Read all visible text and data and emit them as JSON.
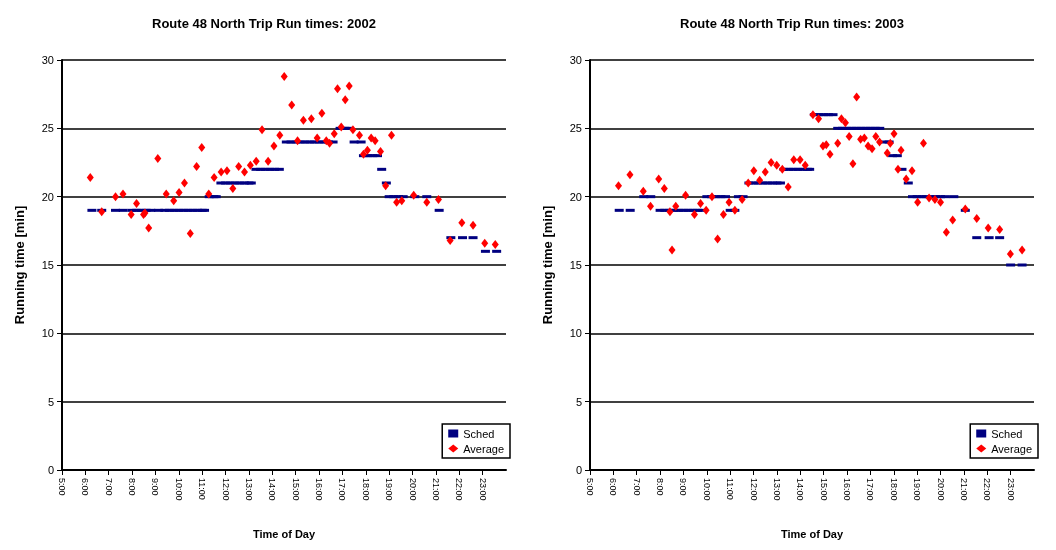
{
  "chart_data": [
    {
      "type": "scatter",
      "title": "Route 48 North Trip Run times: 2002",
      "xlabel": "Time of Day",
      "ylabel": "Running time [min]",
      "xlim": [
        5,
        24
      ],
      "xticks": [
        {
          "value": 5,
          "label": "5:00"
        },
        {
          "value": 6,
          "label": "6:00"
        },
        {
          "value": 7,
          "label": "7:00"
        },
        {
          "value": 8,
          "label": "8:00"
        },
        {
          "value": 9,
          "label": "9:00"
        },
        {
          "value": 10,
          "label": "10:00"
        },
        {
          "value": 11,
          "label": "11:00"
        },
        {
          "value": 12,
          "label": "12:00"
        },
        {
          "value": 13,
          "label": "13:00"
        },
        {
          "value": 14,
          "label": "14:00"
        },
        {
          "value": 15,
          "label": "15:00"
        },
        {
          "value": 16,
          "label": "16:00"
        },
        {
          "value": 17,
          "label": "17:00"
        },
        {
          "value": 18,
          "label": "18:00"
        },
        {
          "value": 19,
          "label": "19:00"
        },
        {
          "value": 20,
          "label": "20:00"
        },
        {
          "value": 21,
          "label": "21:00"
        },
        {
          "value": 22,
          "label": "22:00"
        },
        {
          "value": 23,
          "label": "23:00"
        }
      ],
      "ylim": [
        0,
        30
      ],
      "yticks": [
        0,
        5,
        10,
        15,
        20,
        25,
        30
      ],
      "grid": "y",
      "legend": "bottom right",
      "series": [
        {
          "name": "Sched",
          "color": "#000080",
          "marker": "square",
          "x": [
            6.28,
            6.7,
            7.29,
            7.62,
            8.0,
            8.2,
            8.4,
            8.6,
            8.8,
            9.13,
            9.4,
            9.6,
            9.8,
            10.0,
            10.2,
            10.4,
            10.6,
            10.8,
            11.0,
            11.1,
            11.3,
            11.5,
            11.6,
            11.8,
            12.0,
            12.2,
            12.4,
            12.6,
            12.8,
            13.0,
            13.1,
            13.3,
            13.5,
            13.7,
            13.9,
            14.1,
            14.3,
            14.6,
            14.8,
            15.0,
            15.2,
            15.4,
            15.6,
            15.8,
            16.0,
            16.2,
            16.4,
            16.6,
            16.9,
            17.1,
            17.3,
            17.5,
            17.8,
            17.9,
            18.1,
            18.3,
            18.5,
            18.68,
            18.88,
            19.0,
            19.2,
            19.4,
            19.6,
            20.1,
            20.61,
            21.14,
            21.64,
            22.14,
            22.59,
            23.12,
            23.6
          ],
          "values": [
            19,
            19,
            19,
            19,
            19,
            19,
            19,
            19,
            19,
            19,
            19,
            19,
            19,
            19,
            19,
            19,
            19,
            19,
            19,
            19,
            20,
            20,
            20,
            21,
            21,
            21,
            21,
            21,
            21,
            21,
            21,
            22,
            22,
            22,
            22,
            22,
            22,
            24,
            24,
            24,
            24,
            24,
            24,
            24,
            24,
            24,
            24,
            24,
            25,
            25,
            25,
            24,
            24,
            23,
            23,
            23,
            23,
            22,
            21,
            20,
            20,
            20,
            20,
            20,
            20,
            19,
            17,
            17,
            17,
            16,
            16
          ]
        },
        {
          "name": "Average",
          "color": "#ff0000",
          "marker": "diamond",
          "x": [
            6.21,
            6.7,
            7.29,
            7.61,
            7.96,
            8.19,
            8.49,
            8.55,
            8.71,
            9.1,
            9.46,
            9.78,
            10.01,
            10.24,
            10.49,
            10.76,
            10.98,
            11.28,
            11.51,
            11.81,
            12.06,
            12.31,
            12.56,
            12.81,
            13.06,
            13.31,
            13.56,
            13.82,
            14.07,
            14.32,
            14.51,
            14.83,
            15.08,
            15.33,
            15.67,
            15.92,
            16.12,
            16.31,
            16.45,
            16.65,
            16.79,
            16.95,
            17.12,
            17.29,
            17.45,
            17.73,
            17.9,
            18.07,
            18.23,
            18.4,
            18.63,
            18.85,
            19.1,
            19.32,
            19.54,
            20.05,
            20.61,
            21.11,
            21.61,
            22.11,
            22.59,
            23.09,
            23.54
          ],
          "values": [
            21.4,
            18.9,
            20.0,
            20.2,
            18.7,
            19.5,
            18.7,
            18.8,
            17.7,
            22.8,
            20.2,
            19.7,
            20.3,
            21.0,
            17.3,
            22.2,
            23.6,
            20.2,
            21.4,
            21.8,
            21.9,
            20.6,
            22.2,
            21.8,
            22.3,
            22.6,
            24.9,
            22.6,
            23.7,
            24.5,
            28.8,
            26.7,
            24.1,
            25.6,
            25.7,
            24.3,
            26.1,
            24.1,
            23.9,
            24.6,
            27.9,
            25.1,
            27.1,
            28.1,
            24.9,
            24.5,
            23.1,
            23.4,
            24.3,
            24.1,
            23.3,
            20.8,
            24.5,
            19.6,
            19.7,
            20.1,
            19.6,
            19.8,
            16.8,
            18.1,
            17.9,
            16.6,
            16.5
          ]
        }
      ]
    },
    {
      "type": "scatter",
      "title": "Route 48 North Trip Run times: 2003",
      "xlabel": "Time of Day",
      "ylabel": "Running time [min]",
      "xlim": [
        5,
        24
      ],
      "xticks": [
        {
          "value": 5,
          "label": "5:00"
        },
        {
          "value": 6,
          "label": "6:00"
        },
        {
          "value": 7,
          "label": "7:00"
        },
        {
          "value": 8,
          "label": "8:00"
        },
        {
          "value": 9,
          "label": "9:00"
        },
        {
          "value": 10,
          "label": "10:00"
        },
        {
          "value": 11,
          "label": "11:00"
        },
        {
          "value": 12,
          "label": "12:00"
        },
        {
          "value": 13,
          "label": "13:00"
        },
        {
          "value": 14,
          "label": "14:00"
        },
        {
          "value": 15,
          "label": "15:00"
        },
        {
          "value": 16,
          "label": "16:00"
        },
        {
          "value": 17,
          "label": "17:00"
        },
        {
          "value": 18,
          "label": "18:00"
        },
        {
          "value": 19,
          "label": "19:00"
        },
        {
          "value": 20,
          "label": "20:00"
        },
        {
          "value": 21,
          "label": "21:00"
        },
        {
          "value": 22,
          "label": "22:00"
        },
        {
          "value": 23,
          "label": "23:00"
        }
      ],
      "ylim": [
        0,
        30
      ],
      "yticks": [
        0,
        5,
        10,
        15,
        20,
        25,
        30
      ],
      "grid": "y",
      "legend": "bottom right",
      "series": [
        {
          "name": "Sched",
          "color": "#000080",
          "marker": "square",
          "x": [
            6.25,
            6.72,
            7.3,
            7.6,
            8.0,
            8.2,
            8.4,
            8.6,
            8.8,
            9.0,
            9.2,
            9.4,
            9.6,
            9.8,
            10.0,
            10.2,
            10.4,
            10.6,
            10.8,
            11.0,
            11.2,
            11.35,
            11.55,
            11.8,
            12.0,
            12.2,
            12.4,
            12.6,
            12.8,
            13.0,
            13.15,
            13.3,
            13.5,
            13.7,
            13.9,
            14.1,
            14.3,
            14.4,
            14.6,
            14.8,
            15.0,
            15.2,
            15.4,
            15.6,
            15.8,
            16.0,
            16.2,
            16.4,
            16.6,
            16.8,
            17.0,
            17.2,
            17.4,
            17.6,
            17.8,
            17.95,
            18.15,
            18.35,
            18.62,
            18.8,
            19.0,
            19.2,
            19.4,
            19.6,
            19.8,
            20.0,
            20.2,
            20.57,
            21.06,
            21.55,
            22.08,
            22.53,
            23.0,
            23.49
          ],
          "values": [
            19,
            19,
            20,
            20,
            19,
            19,
            19,
            19,
            19,
            19,
            19,
            19,
            19,
            19,
            20,
            20,
            20,
            20,
            20,
            19,
            19,
            20,
            20,
            21,
            21,
            21,
            21,
            21,
            21,
            21,
            21,
            22,
            22,
            22,
            22,
            22,
            22,
            22,
            26,
            26,
            26,
            26,
            26,
            25,
            25,
            25,
            25,
            25,
            25,
            25,
            25,
            25,
            25,
            24,
            24,
            23,
            23,
            22,
            21,
            20,
            20,
            20,
            20,
            20,
            20,
            20,
            20,
            20,
            19,
            17,
            17,
            17,
            15,
            15
          ]
        },
        {
          "name": "Average",
          "color": "#ff0000",
          "marker": "diamond",
          "x": [
            6.22,
            6.71,
            7.28,
            7.59,
            7.94,
            8.18,
            8.42,
            8.51,
            8.67,
            9.09,
            9.47,
            9.73,
            9.97,
            10.22,
            10.46,
            10.71,
            10.95,
            11.2,
            11.51,
            11.77,
            12.01,
            12.26,
            12.5,
            12.75,
            12.99,
            13.23,
            13.48,
            13.72,
            13.99,
            14.21,
            14.54,
            14.78,
            14.97,
            15.11,
            15.27,
            15.6,
            15.76,
            15.93,
            16.09,
            16.25,
            16.41,
            16.58,
            16.74,
            16.9,
            17.07,
            17.23,
            17.39,
            17.72,
            17.85,
            18.01,
            18.18,
            18.31,
            18.53,
            18.78,
            19.02,
            19.27,
            19.51,
            19.76,
            20.0,
            20.25,
            20.52,
            21.06,
            21.55,
            22.04,
            22.53,
            22.99,
            23.49
          ],
          "values": [
            20.8,
            21.6,
            20.4,
            19.3,
            21.3,
            20.6,
            18.9,
            16.1,
            19.3,
            20.1,
            18.7,
            19.5,
            19.0,
            20.0,
            16.9,
            18.7,
            19.6,
            19.0,
            19.8,
            21.0,
            21.9,
            21.2,
            21.8,
            22.5,
            22.3,
            22.0,
            20.7,
            22.7,
            22.7,
            22.3,
            26.0,
            25.7,
            23.7,
            23.8,
            23.1,
            23.9,
            25.7,
            25.4,
            24.4,
            22.4,
            27.3,
            24.2,
            24.3,
            23.7,
            23.5,
            24.4,
            24.0,
            23.2,
            23.9,
            24.6,
            22.0,
            23.4,
            21.3,
            21.9,
            19.6,
            23.9,
            19.9,
            19.8,
            19.6,
            17.4,
            18.3,
            19.1,
            18.4,
            17.7,
            17.6,
            15.8,
            16.1
          ]
        }
      ]
    }
  ]
}
